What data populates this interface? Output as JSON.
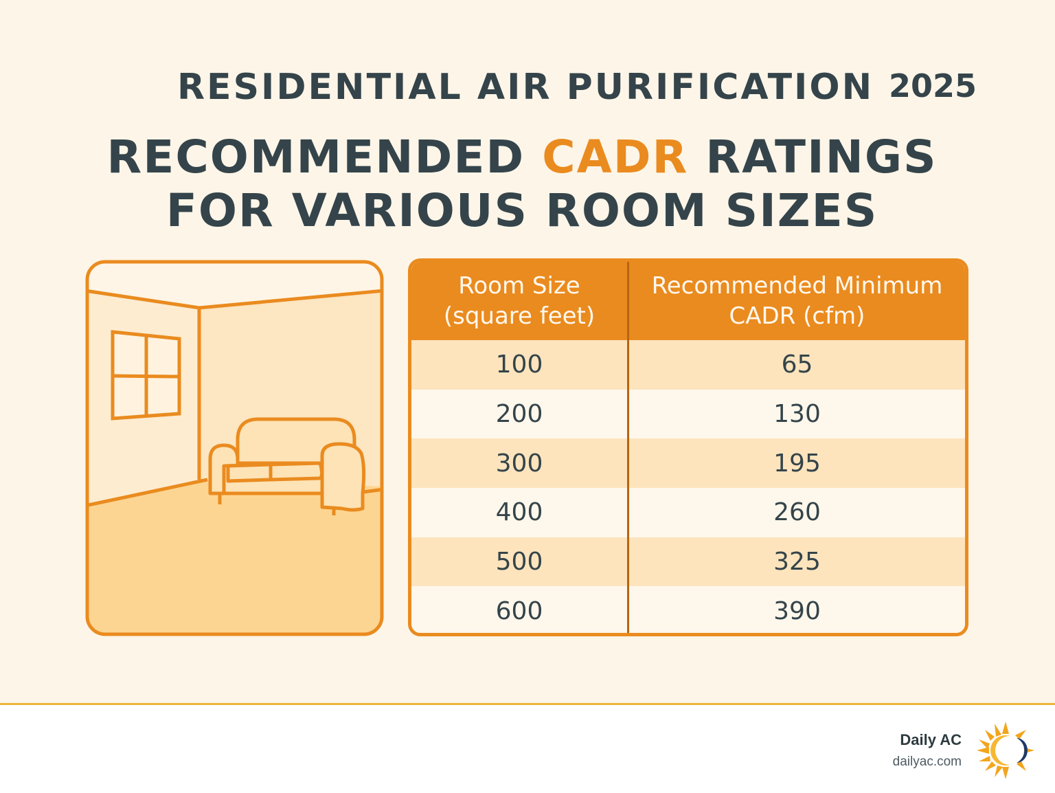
{
  "header": {
    "supertitle": "RESIDENTIAL AIR PURIFICATION",
    "year": "2025",
    "title_line1_pre": "RECOMMENDED ",
    "title_line1_accent": "CADR",
    "title_line1_post": " RATINGS",
    "title_line2": "FOR VARIOUS ROOM SIZES"
  },
  "table": {
    "headers": [
      [
        "Room Size",
        "(square feet)"
      ],
      [
        "Recommended Minimum",
        "CADR (cfm)"
      ]
    ],
    "rows": [
      [
        "100",
        "65"
      ],
      [
        "200",
        "130"
      ],
      [
        "300",
        "195"
      ],
      [
        "400",
        "260"
      ],
      [
        "500",
        "325"
      ],
      [
        "600",
        "390"
      ]
    ]
  },
  "footer": {
    "brand": "Daily AC",
    "url": "dailyac.com"
  },
  "colors": {
    "accent": "#ea8b1f",
    "text": "#34444a",
    "background": "#fdf5e8",
    "row_alt": "#fde4bd"
  },
  "icons": {
    "illustration": "room-with-sofa-illustration",
    "logo": "sun-moon-logo-icon"
  }
}
